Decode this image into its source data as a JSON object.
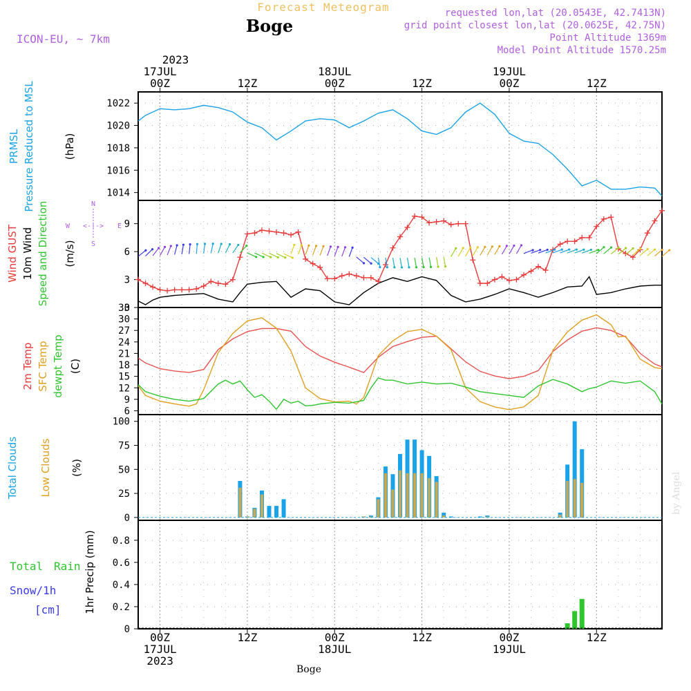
{
  "header": {
    "title": "Forecast Meteogram",
    "station": "Boge",
    "model": "ICON-EU, ~ 7km",
    "requested": "requested lon,lat (20.0543E, 42.7413N)",
    "gridpoint": "grid point closest lon,lat (20.0625E, 42.75N)",
    "point_altitude": "Point Altitude 1369m",
    "model_altitude": "Model Point Altitude 1570.25m",
    "watermark": "by Angel",
    "footer_station": "Boge"
  },
  "time_axis": {
    "top_year": "2023",
    "major": [
      {
        "top": [
          "17JUL",
          "00Z"
        ],
        "bottom": [
          "00Z",
          "17JUL",
          "2023"
        ]
      },
      {
        "top": [
          "12Z"
        ],
        "bottom": [
          "12Z"
        ]
      },
      {
        "top": [
          "18JUL",
          "00Z"
        ],
        "bottom": [
          "00Z",
          "18JUL"
        ]
      },
      {
        "top": [
          "12Z"
        ],
        "bottom": [
          "12Z"
        ]
      },
      {
        "top": [
          "19JUL",
          "00Z"
        ],
        "bottom": [
          "00Z",
          "19JUL"
        ]
      },
      {
        "top": [
          "12Z"
        ],
        "bottom": [
          "12Z"
        ]
      }
    ]
  },
  "panels": {
    "pressure": {
      "labels": [
        "PRMSL",
        "Pressure Reduced to MSL"
      ],
      "unit": "(hPa)",
      "ticks": [
        "1014",
        "1016",
        "1018",
        "1020",
        "1022"
      ]
    },
    "wind": {
      "labels": [
        "Wind GUST",
        "10m Wind",
        "Speed and Direction"
      ],
      "unit": "(m/s)",
      "ticks": [
        "0",
        "3",
        "6",
        "9"
      ],
      "compass": {
        "n": "N",
        "s": "S",
        "w": "W",
        "e": "E",
        "arrow": "<-|->"
      }
    },
    "temp": {
      "labels": [
        "2m Temp",
        "SFC Temp",
        "dewpt Temp"
      ],
      "unit": "(C)",
      "ticks": [
        "6",
        "9",
        "12",
        "15",
        "18",
        "21",
        "24",
        "27",
        "30",
        "33"
      ]
    },
    "clouds": {
      "labels": [
        "Total Clouds",
        "Low Clouds"
      ],
      "unit": "(%)",
      "ticks": [
        "0",
        "25",
        "50",
        "75",
        "100"
      ]
    },
    "precip": {
      "labels": [
        "Total",
        "Rain",
        "Snow/1h",
        "[cm]"
      ],
      "unit": "1hr Precip (mm)",
      "ticks": [
        "0",
        "0.2",
        "0.4",
        "0.6",
        "0.8"
      ]
    }
  },
  "colors": {
    "pressure": "#1aa3e8",
    "gust": "#e83a3a",
    "wind10": "#000000",
    "temp2m": "#e85050",
    "sfc": "#e0a020",
    "dewpt": "#2ec52e",
    "total_clouds": "#1aa3e8",
    "low_clouds": "#c8a850",
    "rain": "#2ec52e",
    "snow": "#3a3ae8",
    "title": "#f0c060",
    "info": "#b060e0"
  },
  "chart_data": [
    {
      "type": "line",
      "name": "PRMSL",
      "ylim": [
        1013.3,
        1023
      ],
      "x": [
        -3,
        -2,
        0,
        2,
        4,
        6,
        8,
        10,
        12,
        14,
        16,
        18,
        20,
        22,
        24,
        26,
        28,
        30,
        32,
        34,
        36,
        38,
        40,
        42,
        44,
        46,
        48,
        50,
        52,
        54,
        56,
        58,
        60,
        62,
        64,
        66,
        68,
        69
      ],
      "values": [
        1020.4,
        1020.9,
        1021.5,
        1021.4,
        1021.5,
        1021.8,
        1021.6,
        1021.2,
        1020.3,
        1019.8,
        1018.7,
        1019.5,
        1020.4,
        1020.6,
        1020.5,
        1019.8,
        1020.4,
        1021.1,
        1021.4,
        1020.6,
        1019.5,
        1019.2,
        1019.8,
        1021.2,
        1022.0,
        1021.0,
        1019.3,
        1018.6,
        1018.4,
        1017.4,
        1016.1,
        1014.6,
        1015.1,
        1014.3,
        1014.3,
        1014.5,
        1014.4,
        1013.7
      ]
    },
    {
      "type": "line",
      "name": "Wind GUST",
      "ylim": [
        0,
        11.5
      ],
      "x": [
        -3,
        -2,
        -1,
        0,
        1,
        2,
        3,
        4,
        5,
        6,
        7,
        8,
        9,
        10,
        11,
        12,
        13,
        14,
        15,
        16,
        17,
        18,
        19,
        20,
        21,
        22,
        23,
        24,
        25,
        26,
        27,
        28,
        29,
        30,
        31,
        32,
        33,
        34,
        35,
        36,
        37,
        38,
        39,
        40,
        41,
        42,
        43,
        44,
        45,
        46,
        47,
        48,
        49,
        50,
        51,
        52,
        53,
        54,
        55,
        56,
        57,
        58,
        59,
        60,
        61,
        62,
        63,
        64,
        65,
        66,
        67,
        68,
        69
      ],
      "values": [
        3.0,
        2.6,
        2.2,
        1.9,
        1.8,
        1.9,
        1.9,
        1.9,
        2.0,
        2.3,
        2.8,
        2.6,
        2.5,
        3.0,
        5.4,
        7.9,
        8.0,
        8.3,
        8.2,
        8.1,
        8.0,
        7.8,
        8.1,
        5.2,
        4.7,
        4.3,
        3.1,
        3.1,
        3.4,
        3.6,
        3.4,
        3.2,
        3.2,
        2.8,
        4.6,
        6.4,
        7.6,
        8.6,
        9.8,
        9.7,
        9.1,
        9.2,
        9.3,
        8.9,
        9.0,
        9.0,
        5.1,
        2.6,
        2.6,
        3.0,
        3.3,
        2.9,
        3.0,
        3.5,
        3.9,
        4.4,
        4.0,
        6.2,
        6.8,
        7.1,
        7.1,
        7.5,
        7.5,
        8.7,
        9.5,
        9.7,
        6.3,
        5.8,
        5.4,
        6.2,
        8.0,
        9.3,
        10.4
      ]
    },
    {
      "type": "line",
      "name": "10m Wind",
      "ylim": [
        0,
        11.5
      ],
      "x": [
        -3,
        -2,
        -1,
        0,
        2,
        4,
        6,
        8,
        10,
        11,
        12,
        14,
        16,
        18,
        20,
        22,
        24,
        26,
        28,
        30,
        32,
        34,
        36,
        38,
        40,
        42,
        44,
        46,
        48,
        50,
        52,
        54,
        56,
        58,
        59,
        60,
        62,
        64,
        66,
        68,
        69
      ],
      "values": [
        0.7,
        0.3,
        0.8,
        1.1,
        1.3,
        1.4,
        1.5,
        0.9,
        0.6,
        1.6,
        2.5,
        2.7,
        2.8,
        1.1,
        2.0,
        1.8,
        0.6,
        0.3,
        1.6,
        2.6,
        3.2,
        2.8,
        3.3,
        2.9,
        1.3,
        0.6,
        0.9,
        1.4,
        2.0,
        1.6,
        1.1,
        1.6,
        2.2,
        2.3,
        3.3,
        1.4,
        1.6,
        2.0,
        2.3,
        2.4,
        2.4
      ]
    },
    {
      "type": "line",
      "name": "2m Temp",
      "ylim": [
        5,
        33
      ],
      "x": [
        -3,
        -2,
        0,
        2,
        4,
        6,
        8,
        10,
        12,
        14,
        16,
        18,
        20,
        22,
        24,
        26,
        27,
        28,
        30,
        32,
        34,
        36,
        38,
        40,
        42,
        44,
        46,
        48,
        50,
        52,
        54,
        56,
        58,
        60,
        62,
        64,
        66,
        68,
        69
      ],
      "values": [
        19.8,
        18.5,
        17.0,
        16.4,
        16.0,
        16.8,
        22.0,
        24.8,
        26.7,
        27.5,
        27.5,
        26.8,
        22.8,
        20.3,
        18.7,
        17.4,
        16.7,
        16.0,
        20.0,
        22.8,
        24.1,
        25.2,
        25.5,
        22.2,
        18.8,
        16.3,
        15.1,
        14.4,
        15.0,
        16.5,
        21.5,
        24.5,
        26.8,
        27.7,
        27.0,
        25.3,
        21.0,
        18.2,
        17.5
      ]
    },
    {
      "type": "line",
      "name": "SFC Temp",
      "ylim": [
        5,
        33
      ],
      "x": [
        -3,
        -2,
        0,
        2,
        3,
        4,
        5,
        6,
        8,
        10,
        12,
        14,
        16,
        18,
        20,
        22,
        24,
        26,
        27,
        28,
        30,
        32,
        34,
        36,
        38,
        40,
        42,
        44,
        46,
        48,
        50,
        52,
        54,
        56,
        58,
        60,
        62,
        63,
        64,
        66,
        68,
        69
      ],
      "values": [
        12.5,
        10.0,
        8.5,
        7.8,
        7.5,
        7.2,
        7.8,
        11.5,
        21.2,
        26.2,
        29.5,
        30.3,
        27.6,
        21.6,
        12.0,
        9.2,
        8.3,
        8.5,
        7.8,
        9.5,
        20.4,
        24.3,
        26.7,
        27.3,
        25.5,
        22.0,
        12.0,
        8.4,
        7.0,
        6.3,
        7.0,
        10.0,
        21.8,
        26.6,
        29.7,
        31.1,
        28.5,
        25.3,
        25.5,
        19.5,
        17.3,
        17.0
      ]
    },
    {
      "type": "line",
      "name": "dewpt Temp",
      "ylim": [
        5,
        33
      ],
      "x": [
        -3,
        -2,
        0,
        2,
        4,
        6,
        8,
        9,
        10,
        11,
        12,
        13,
        14,
        15,
        16,
        17,
        18,
        19,
        20,
        21,
        22,
        24,
        26,
        28,
        29,
        30,
        31,
        32,
        34,
        36,
        38,
        40,
        42,
        44,
        46,
        48,
        50,
        52,
        54,
        56,
        58,
        59,
        60,
        62,
        64,
        66,
        68,
        69
      ],
      "values": [
        12.8,
        11.0,
        9.8,
        9.0,
        8.5,
        9.2,
        13.0,
        14.0,
        13.0,
        13.8,
        11.5,
        9.5,
        10.2,
        8.5,
        6.4,
        9.0,
        8.0,
        8.5,
        7.3,
        7.4,
        7.8,
        8.2,
        8.0,
        8.7,
        12.0,
        14.6,
        14.0,
        14.0,
        13.0,
        13.5,
        13.0,
        13.2,
        12.2,
        11.0,
        10.5,
        10.0,
        9.5,
        12.5,
        14.2,
        13.0,
        11.0,
        11.8,
        12.2,
        13.8,
        13.2,
        13.8,
        11.0,
        7.8
      ]
    },
    {
      "type": "bar",
      "name": "Total Clouds",
      "ylim": [
        -3,
        107
      ],
      "x": [
        11,
        12,
        13,
        14,
        15,
        16,
        17,
        28,
        29,
        30,
        31,
        32,
        33,
        34,
        35,
        36,
        37,
        38,
        39,
        40,
        44,
        45,
        55,
        56,
        57,
        58
      ],
      "values": [
        38,
        1,
        10,
        28,
        12,
        12,
        19,
        1,
        2,
        21,
        53,
        45,
        66,
        81,
        81,
        70,
        64,
        43,
        5,
        1,
        1,
        2,
        5,
        55,
        100,
        71
      ]
    },
    {
      "type": "bar",
      "name": "Low Clouds",
      "ylim": [
        -3,
        107
      ],
      "x": [
        11,
        12,
        13,
        14,
        15,
        16,
        17,
        28,
        29,
        30,
        31,
        32,
        33,
        34,
        35,
        36,
        37,
        38,
        39,
        40,
        44,
        45,
        55,
        56,
        57,
        58
      ],
      "values": [
        31,
        1,
        9,
        24,
        0,
        0,
        0,
        1,
        1,
        19,
        46,
        29,
        49,
        46,
        46,
        46,
        41,
        37,
        2,
        0,
        0,
        1,
        3,
        38,
        40,
        36
      ]
    },
    {
      "type": "bar",
      "name": "Rain",
      "ylim": [
        0,
        0.98
      ],
      "x": [
        56,
        57,
        58
      ],
      "values": [
        0.05,
        0.16,
        0.27
      ]
    }
  ]
}
